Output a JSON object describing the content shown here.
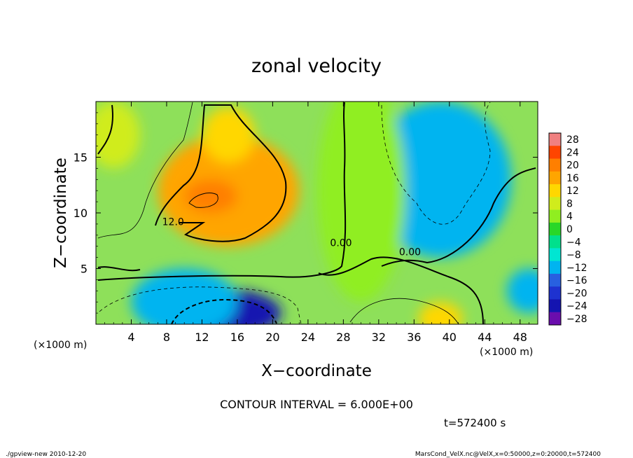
{
  "chart_data": {
    "type": "heatmap",
    "title": "zonal velocity",
    "xlabel": "X−coordinate",
    "ylabel": "Z−coordinate",
    "x_unit_label": "(×1000 m)",
    "z_unit_label": "(×1000 m)",
    "xlim": [
      0,
      50
    ],
    "ylim": [
      0,
      20
    ],
    "x_ticks": [
      4,
      8,
      12,
      16,
      20,
      24,
      28,
      32,
      36,
      40,
      44,
      48
    ],
    "y_ticks": [
      5,
      10,
      15
    ],
    "colorbar": {
      "levels": [
        28,
        24,
        20,
        16,
        12,
        8,
        4,
        0,
        -4,
        -8,
        -12,
        -16,
        -20,
        -24,
        -28
      ],
      "labels": [
        "28",
        "24",
        "20",
        "16",
        "12",
        "8",
        "4",
        "0",
        "−4",
        "−8",
        "−12",
        "−16",
        "−20",
        "−24",
        "−28"
      ],
      "colors": [
        "#f08080",
        "#ff4500",
        "#ff7f00",
        "#ffa500",
        "#ffd700",
        "#d0ec1c",
        "#90ee20",
        "#28d728",
        "#00e08c",
        "#00e6d2",
        "#00b4f0",
        "#2860e0",
        "#1e32d0",
        "#1414b0",
        "#6a0dad"
      ]
    },
    "contour_labels": [
      {
        "text": "12.0",
        "x": 7.5,
        "z": 8.9
      },
      {
        "text": "0.00",
        "x": 26.5,
        "z": 7.0
      },
      {
        "text": "0.00",
        "x": 34.3,
        "z": 6.2
      }
    ],
    "contour_interval_text": "CONTOUR INTERVAL = 6.000E+00",
    "time_text": "t=572400 s",
    "footer_left": "./gpview-new  2010-12-20",
    "footer_right": "MarsCond_VelX.nc@VelX,x=0:50000,z=0:20000,t=572400",
    "field_blobs": [
      {
        "x": 15,
        "z": 12,
        "rx": 8,
        "rz": 5,
        "v": 18
      },
      {
        "x": 13,
        "z": 11.5,
        "rx": 3,
        "rz": 1.5,
        "v": 20
      },
      {
        "x": 15,
        "z": 17,
        "rx": 3,
        "rz": 2.5,
        "v": 12
      },
      {
        "x": 14,
        "z": 1,
        "rx": 7,
        "rz": 2.2,
        "v": -22
      },
      {
        "x": 10,
        "z": 2,
        "rx": 6,
        "rz": 3,
        "v": -10
      },
      {
        "x": 39,
        "z": 13,
        "rx": 8,
        "rz": 7,
        "v": -9
      },
      {
        "x": 39,
        "z": 10,
        "rx": 4,
        "rz": 3,
        "v": -12
      },
      {
        "x": 49,
        "z": 3,
        "rx": 2.5,
        "rz": 2,
        "v": -10
      },
      {
        "x": 39,
        "z": 0.5,
        "rx": 2.5,
        "rz": 1.5,
        "v": 14
      },
      {
        "x": 2,
        "z": 17,
        "rx": 3,
        "rz": 3,
        "v": 10
      },
      {
        "x": 30,
        "z": 12,
        "rx": 5,
        "rz": 10,
        "v": 4
      }
    ]
  }
}
